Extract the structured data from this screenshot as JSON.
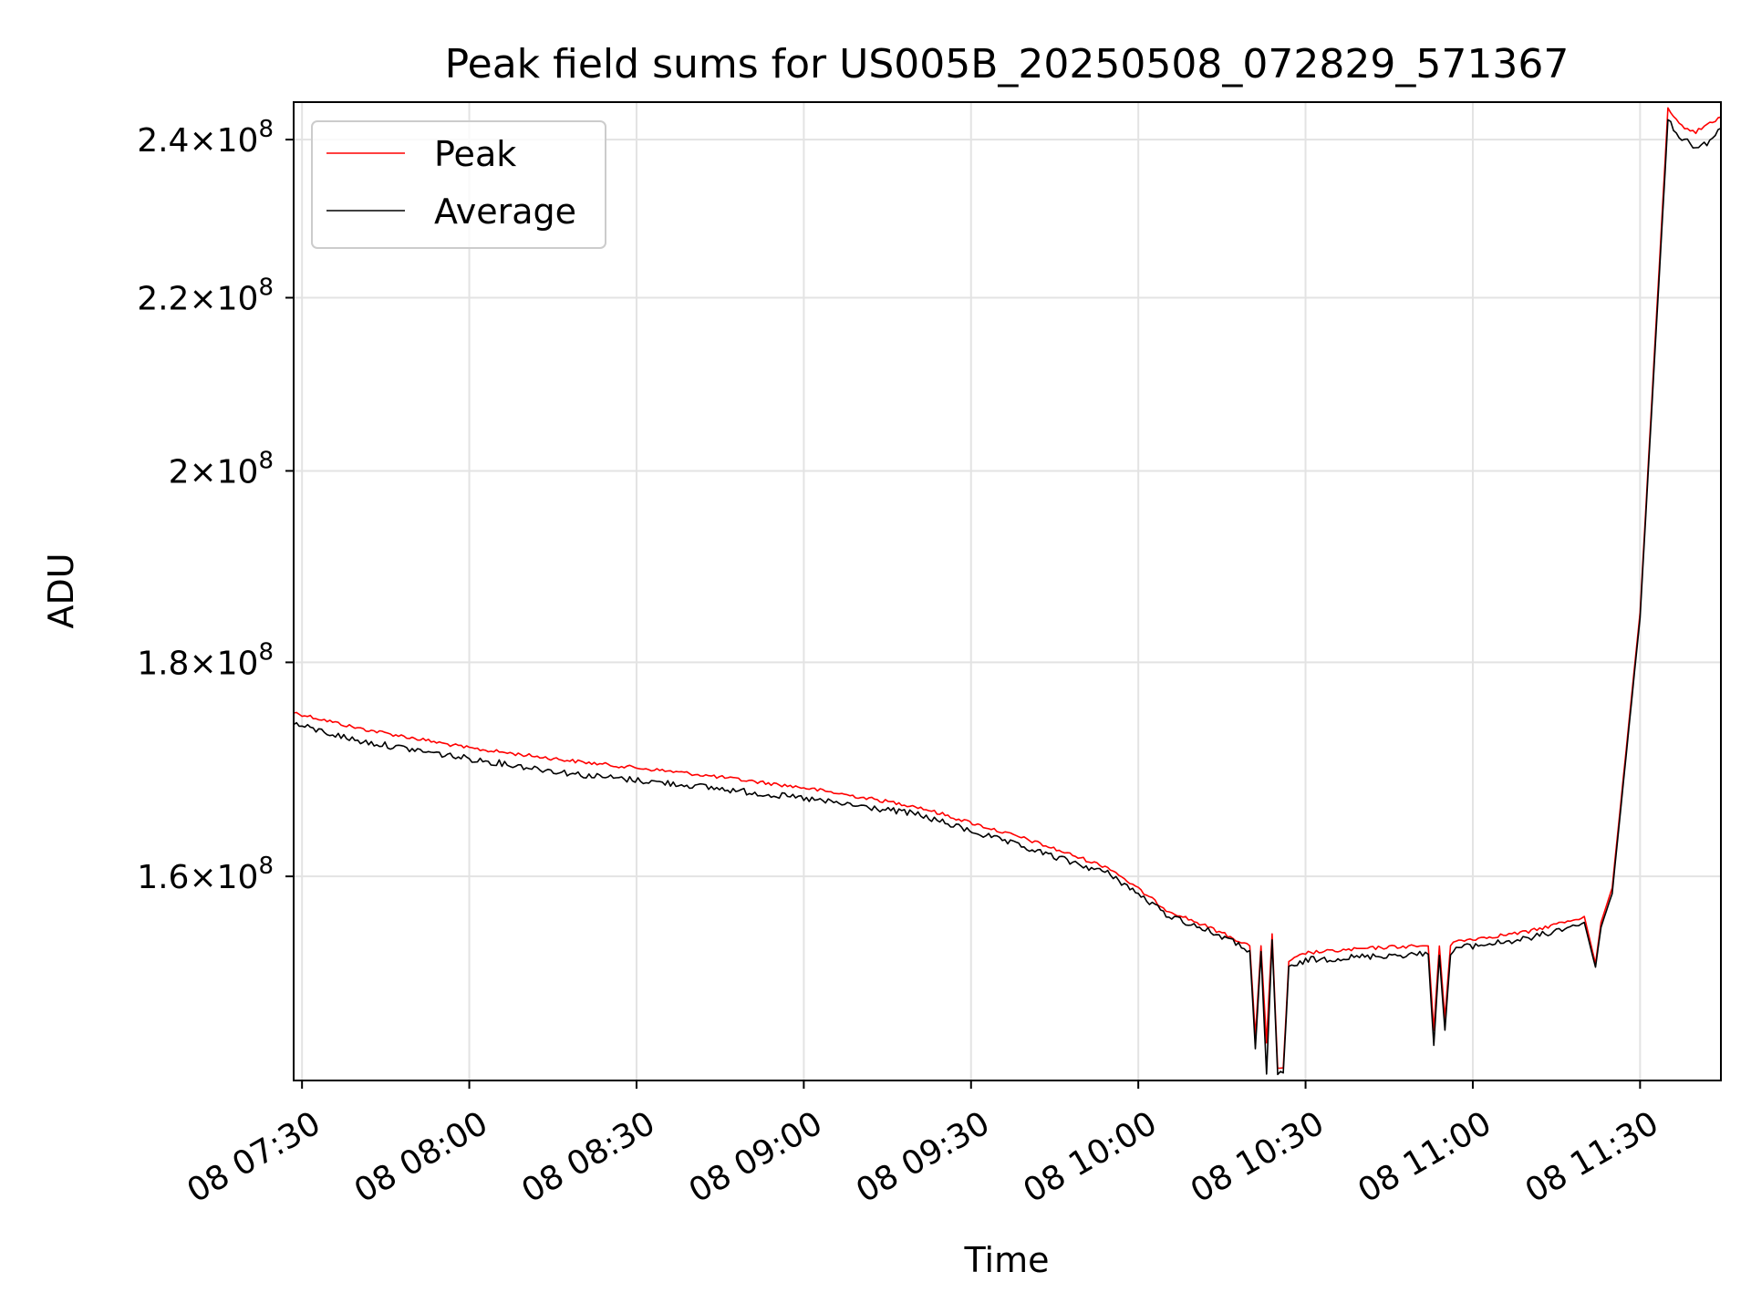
{
  "chart_data": {
    "type": "line",
    "title": "Peak field sums for US005B_20250508_072829_571367",
    "xlabel": "Time",
    "ylabel": "ADU",
    "x_range": [
      "2025-05-08 07:28:30",
      "2025-05-08 11:44:30"
    ],
    "y_range": [
      143000000,
      245000000
    ],
    "y_scale": "log",
    "grid": true,
    "legend_position": "top-left",
    "x_ticks": [
      {
        "value": "2025-05-08 07:30",
        "label": "08 07:30"
      },
      {
        "value": "2025-05-08 08:00",
        "label": "08 08:00"
      },
      {
        "value": "2025-05-08 08:30",
        "label": "08 08:30"
      },
      {
        "value": "2025-05-08 09:00",
        "label": "08 09:00"
      },
      {
        "value": "2025-05-08 09:30",
        "label": "08 09:30"
      },
      {
        "value": "2025-05-08 10:00",
        "label": "08 10:00"
      },
      {
        "value": "2025-05-08 10:30",
        "label": "08 10:30"
      },
      {
        "value": "2025-05-08 11:00",
        "label": "08 11:00"
      },
      {
        "value": "2025-05-08 11:30",
        "label": "08 11:30"
      }
    ],
    "y_ticks": [
      {
        "value": 160000000,
        "mantissa": "1.6",
        "exponent": "8"
      },
      {
        "value": 180000000,
        "mantissa": "1.8",
        "exponent": "8"
      },
      {
        "value": 200000000,
        "mantissa": "2",
        "exponent": "8"
      },
      {
        "value": 220000000,
        "mantissa": "2.2",
        "exponent": "8"
      },
      {
        "value": 240000000,
        "mantissa": "2.4",
        "exponent": "8"
      }
    ],
    "times_sign": "×",
    "tick_base": "10",
    "series": [
      {
        "name": "Peak",
        "color": "#ff0000",
        "x": [
          "2025-05-08 07:28:30",
          "2025-05-08 07:40",
          "2025-05-08 08:00",
          "2025-05-08 08:20",
          "2025-05-08 08:40",
          "2025-05-08 09:00",
          "2025-05-08 09:20",
          "2025-05-08 09:40",
          "2025-05-08 09:55",
          "2025-05-08 10:05",
          "2025-05-08 10:15",
          "2025-05-08 10:20",
          "2025-05-08 10:21",
          "2025-05-08 10:22",
          "2025-05-08 10:23",
          "2025-05-08 10:24",
          "2025-05-08 10:25",
          "2025-05-08 10:26",
          "2025-05-08 10:27",
          "2025-05-08 10:28",
          "2025-05-08 10:30",
          "2025-05-08 10:45",
          "2025-05-08 10:52",
          "2025-05-08 10:53",
          "2025-05-08 10:54",
          "2025-05-08 10:55",
          "2025-05-08 10:56",
          "2025-05-08 10:57",
          "2025-05-08 11:10",
          "2025-05-08 11:20",
          "2025-05-08 11:22",
          "2025-05-08 11:23",
          "2025-05-08 11:25",
          "2025-05-08 11:30",
          "2025-05-08 11:35",
          "2025-05-08 11:37",
          "2025-05-08 11:40",
          "2025-05-08 11:42",
          "2025-05-08 11:44:30"
        ],
        "values": [
          175100000,
          173600000,
          171700000,
          170400000,
          169300000,
          168000000,
          166300000,
          163300000,
          160700000,
          157100000,
          155100000,
          154000000,
          146500000,
          154000000,
          146000000,
          155000000,
          144000000,
          144000000,
          152600000,
          152900000,
          153400000,
          153900000,
          154000000,
          147000000,
          154000000,
          148000000,
          154000000,
          154400000,
          155200000,
          156500000,
          152500000,
          156000000,
          159000000,
          185000000,
          244000000,
          242000000,
          241000000,
          242000000,
          243000000
        ]
      },
      {
        "name": "Average",
        "color": "#000000",
        "x": [
          "2025-05-08 07:28:30",
          "2025-05-08 07:40",
          "2025-05-08 08:00",
          "2025-05-08 08:20",
          "2025-05-08 08:40",
          "2025-05-08 09:00",
          "2025-05-08 09:20",
          "2025-05-08 09:40",
          "2025-05-08 09:55",
          "2025-05-08 10:05",
          "2025-05-08 10:15",
          "2025-05-08 10:20",
          "2025-05-08 10:21",
          "2025-05-08 10:22",
          "2025-05-08 10:23",
          "2025-05-08 10:24",
          "2025-05-08 10:25",
          "2025-05-08 10:26",
          "2025-05-08 10:27",
          "2025-05-08 10:28",
          "2025-05-08 10:30",
          "2025-05-08 10:45",
          "2025-05-08 10:52",
          "2025-05-08 10:53",
          "2025-05-08 10:54",
          "2025-05-08 10:55",
          "2025-05-08 10:56",
          "2025-05-08 10:57",
          "2025-05-08 11:10",
          "2025-05-08 11:20",
          "2025-05-08 11:22",
          "2025-05-08 11:23",
          "2025-05-08 11:25",
          "2025-05-08 11:30",
          "2025-05-08 11:35",
          "2025-05-08 11:37",
          "2025-05-08 11:40",
          "2025-05-08 11:42",
          "2025-05-08 11:44:30"
        ],
        "values": [
          174000000,
          172400000,
          170700000,
          169200000,
          168200000,
          167000000,
          165600000,
          162500000,
          160200000,
          156700000,
          154800000,
          153600000,
          145500000,
          153500000,
          143500000,
          154500000,
          143600000,
          143600000,
          152100000,
          152200000,
          152800000,
          153200000,
          153300000,
          145800000,
          153200000,
          147000000,
          153300000,
          153800000,
          154600000,
          156000000,
          152200000,
          155600000,
          158500000,
          184500000,
          242500000,
          240500000,
          239000000,
          239500000,
          241500000
        ]
      }
    ]
  }
}
